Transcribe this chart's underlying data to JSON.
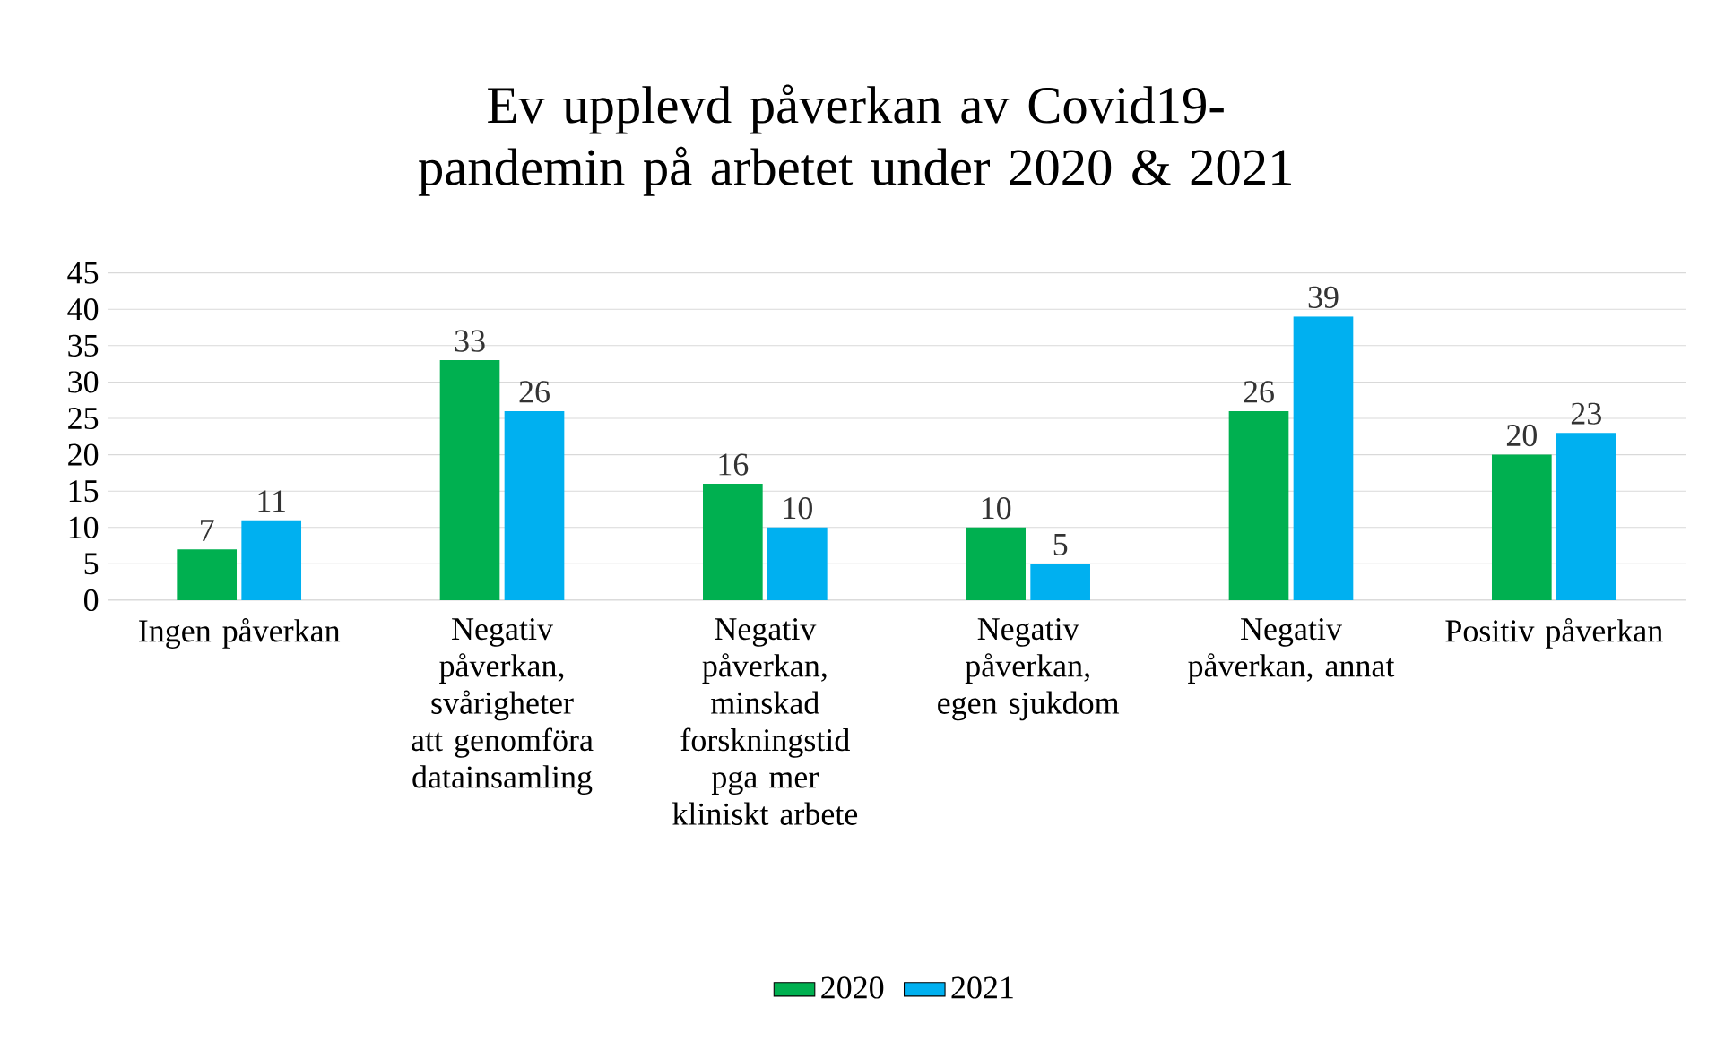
{
  "chart_data": {
    "type": "bar",
    "title": "Ev upplevd påverkan av Covid19-pandemin på arbetet under 2020 & 2021",
    "categories": [
      "Ingen påverkan",
      "Negativ påverkan, svårigheter att genomföra datainsamling",
      "Negativ påverkan, minskad forskningstid pga mer kliniskt arbete",
      "Negativ påverkan, egen sjukdom",
      "Negativ påverkan, annat",
      "Positiv påverkan"
    ],
    "series": [
      {
        "name": "2020",
        "color": "#00b050",
        "values": [
          7,
          33,
          16,
          10,
          26,
          20
        ]
      },
      {
        "name": "2021",
        "color": "#00b0f0",
        "values": [
          11,
          26,
          10,
          5,
          39,
          23
        ]
      }
    ],
    "ylim": [
      0,
      45
    ],
    "yticks": [
      0,
      5,
      10,
      15,
      20,
      25,
      30,
      35,
      40,
      45
    ],
    "grid": "y",
    "legend": "bottom",
    "data_labels": true
  }
}
